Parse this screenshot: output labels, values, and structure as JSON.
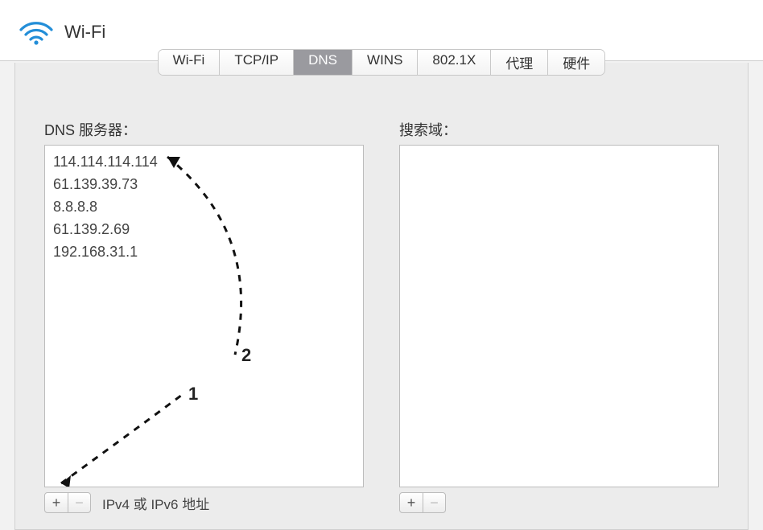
{
  "header": {
    "title": "Wi-Fi",
    "icon_color": "#238ed8"
  },
  "tabs": {
    "items": [
      "Wi-Fi",
      "TCP/IP",
      "DNS",
      "WINS",
      "802.1X",
      "代理",
      "硬件"
    ],
    "selected_index": 2
  },
  "dns_column": {
    "label": "DNS 服务器：",
    "servers": [
      "114.114.114.114",
      "61.139.39.73",
      "8.8.8.8",
      "61.139.2.69",
      "192.168.31.1"
    ],
    "hint": "IPv4 或 IPv6 地址",
    "add_glyph": "+",
    "remove_glyph": "−"
  },
  "search_column": {
    "label": "搜索域：",
    "domains": [],
    "add_glyph": "+",
    "remove_glyph": "−"
  },
  "annotation": {
    "labels": [
      "1",
      "2"
    ]
  },
  "colors": {
    "tab_selected_bg": "#9a9a9f",
    "border": "#bcbcbc",
    "panel_bg": "#ececec"
  }
}
